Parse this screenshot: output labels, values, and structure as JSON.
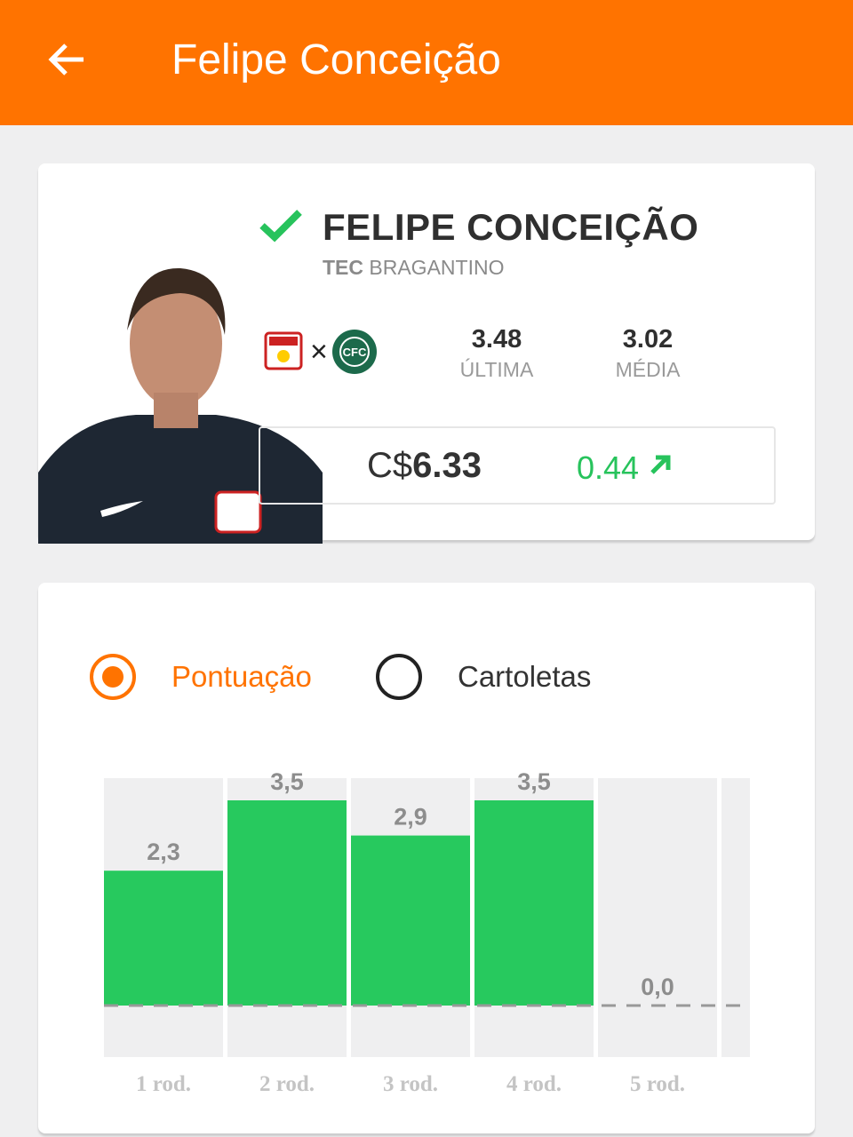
{
  "header": {
    "title": "Felipe Conceição",
    "back_icon": "arrow-left-icon",
    "color": "#ff7300"
  },
  "player": {
    "name": "FELIPE CONCEIÇÃO",
    "position": "TEC",
    "club": "BRAGANTINO",
    "status_icon": "check-icon",
    "status_color": "#27c35c",
    "match": {
      "home": "Red Bull Bragantino",
      "separator": "×",
      "away": "Coritiba"
    },
    "last": {
      "value": "3.48",
      "label": "ÚLTIMA"
    },
    "average": {
      "value": "3.02",
      "label": "MÉDIA"
    },
    "price": {
      "currency": "C$",
      "value": "6.33"
    },
    "variation": {
      "value": "0.44",
      "icon": "arrow-up-right-icon"
    }
  },
  "chart_tabs": [
    {
      "label": "Pontuação",
      "selected": true
    },
    {
      "label": "Cartoletas",
      "selected": false
    }
  ],
  "chart_data": {
    "type": "bar",
    "categories": [
      "1 rod.",
      "2 rod.",
      "3 rod.",
      "4 rod.",
      "5 rod."
    ],
    "values": [
      2.3,
      3.5,
      2.9,
      3.5,
      0.0
    ],
    "labels": [
      "2,3",
      "3,5",
      "2,9",
      "3,5",
      "0,0"
    ],
    "bar_color": "#27c95e",
    "grid": false
  }
}
